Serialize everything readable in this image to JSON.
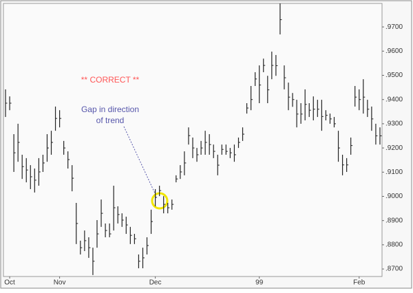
{
  "chart_data": {
    "type": "hlc",
    "annotations": [
      "** CORRECT **",
      "Gap in direction",
      "of trend"
    ],
    "categories": [
      null,
      "Oct",
      null,
      null,
      null,
      null,
      null,
      null,
      null,
      null,
      null,
      null,
      null,
      "Nov",
      null,
      null,
      null,
      null,
      null,
      null,
      null,
      null,
      null,
      null,
      null,
      null,
      null,
      null,
      null,
      null,
      null,
      null,
      null,
      null,
      null,
      null,
      "Dec",
      null,
      null,
      null,
      null,
      null,
      null,
      null,
      null,
      null,
      null,
      null,
      null,
      null,
      null,
      null,
      null,
      null,
      null,
      null,
      null,
      null,
      null,
      null,
      null,
      "99",
      null,
      null,
      null,
      null,
      null,
      null,
      null,
      null,
      null,
      null,
      null,
      null,
      null,
      null,
      null,
      null,
      null,
      null,
      null,
      null,
      null,
      null,
      null,
      "Feb",
      null,
      null,
      null,
      null,
      null
    ],
    "high": [
      0.9442,
      0.9413,
      0.9257,
      0.93,
      0.9172,
      0.9158,
      0.9129,
      0.9115,
      0.9158,
      0.9172,
      0.9257,
      0.9271,
      0.9371,
      0.9356,
      0.9229,
      0.9186,
      0.9129,
      0.8973,
      0.8817,
      0.8859,
      0.8831,
      0.8788,
      0.8902,
      0.8987,
      0.8888,
      0.8888,
      0.9044,
      0.8959,
      0.893,
      0.8916,
      0.8874,
      0.8845,
      0.876,
      0.8788,
      0.8831,
      0.8945,
      0.903,
      0.9044,
      0.9001,
      0.8973,
      0.8987,
      0.9087,
      0.9129,
      0.9186,
      0.9285,
      0.9243,
      0.92,
      0.9229,
      0.9271,
      0.9257,
      0.9214,
      0.9172,
      0.9214,
      0.9214,
      0.92,
      0.9214,
      0.9243,
      0.9285,
      0.9385,
      0.9456,
      0.9513,
      0.9541,
      0.9569,
      0.9498,
      0.9598,
      0.9584,
      0.9797,
      0.9541,
      0.947,
      0.9427,
      0.9399,
      0.9385,
      0.9442,
      0.9385,
      0.9413,
      0.9399,
      0.9399,
      0.9356,
      0.9342,
      0.9328,
      0.9271,
      0.9172,
      0.9158,
      0.9243,
      0.9456,
      0.9442,
      0.9484,
      0.9399,
      0.9371,
      0.93,
      0.9285
    ],
    "low": [
      0.9328,
      0.9356,
      0.9101,
      0.9143,
      0.9072,
      0.9058,
      0.903,
      0.9016,
      0.9044,
      0.9101,
      0.9143,
      0.9172,
      0.9271,
      0.9285,
      0.9172,
      0.9115,
      0.9021,
      0.8803,
      0.876,
      0.8774,
      0.8746,
      0.8675,
      0.8788,
      0.8874,
      0.8831,
      0.8831,
      0.8859,
      0.8888,
      0.8874,
      0.8845,
      0.8803,
      0.8803,
      0.8703,
      0.8703,
      0.876,
      0.8845,
      0.8959,
      0.9001,
      0.893,
      0.893,
      0.8945,
      0.9058,
      0.9072,
      0.9087,
      0.9214,
      0.9158,
      0.9143,
      0.9172,
      0.9172,
      0.9172,
      0.9158,
      0.9087,
      0.9172,
      0.9172,
      0.9158,
      0.9143,
      0.92,
      0.9229,
      0.9342,
      0.9356,
      0.9456,
      0.9385,
      0.9513,
      0.9385,
      0.9484,
      0.9498,
      0.9669,
      0.9442,
      0.9356,
      0.937,
      0.9285,
      0.93,
      0.9314,
      0.9328,
      0.9314,
      0.9328,
      0.9271,
      0.9314,
      0.93,
      0.9285,
      0.9143,
      0.9087,
      0.9101,
      0.9172,
      0.9371,
      0.9356,
      0.9342,
      0.9328,
      0.9271,
      0.9214,
      0.9214
    ],
    "close": [
      0.9385,
      0.9385,
      0.918,
      0.9223,
      0.9123,
      0.9109,
      0.9081,
      0.9067,
      0.9101,
      0.9138,
      0.92,
      0.9223,
      0.9322,
      0.9322,
      0.92,
      0.9152,
      0.9075,
      0.8888,
      0.8788,
      0.8817,
      0.8788,
      0.8732,
      0.8845,
      0.893,
      0.8859,
      0.8845,
      0.8953,
      0.8925,
      0.8902,
      0.8882,
      0.8839,
      0.8825,
      0.8732,
      0.8746,
      0.8797,
      0.8896,
      0.8996,
      0.9024,
      0.8967,
      0.8953,
      0.8967,
      0.9072,
      0.9101,
      0.9138,
      0.9251,
      0.92,
      0.9172,
      0.92,
      0.9223,
      0.9214,
      0.9186,
      0.9129,
      0.9194,
      0.9186,
      0.918,
      0.9172,
      0.9223,
      0.9257,
      0.9365,
      0.94,
      0.9485,
      0.946,
      0.9541,
      0.944,
      0.9541,
      0.954,
      0.973,
      0.949,
      0.941,
      0.94,
      0.934,
      0.934,
      0.938,
      0.9356,
      0.936,
      0.936,
      0.933,
      0.9335,
      0.932,
      0.93,
      0.92,
      0.913,
      0.913,
      0.921,
      0.941,
      0.94,
      0.941,
      0.936,
      0.932,
      0.925,
      0.925
    ],
    "color": "#222222",
    "ylim": [
      0.8669,
      0.9797
    ],
    "yticks": [
      {
        "value": 0.87,
        "label": ".8700"
      },
      {
        "value": 0.88,
        "label": ".8800"
      },
      {
        "value": 0.89,
        "label": ".8900"
      },
      {
        "value": 0.9,
        "label": ".9000"
      },
      {
        "value": 0.91,
        "label": ".9100"
      },
      {
        "value": 0.92,
        "label": ".9200"
      },
      {
        "value": 0.93,
        "label": ".9300"
      },
      {
        "value": 0.94,
        "label": ".9400"
      },
      {
        "value": 0.95,
        "label": ".9500"
      },
      {
        "value": 0.96,
        "label": ".9600"
      },
      {
        "value": 0.97,
        "label": ".9700"
      }
    ]
  }
}
